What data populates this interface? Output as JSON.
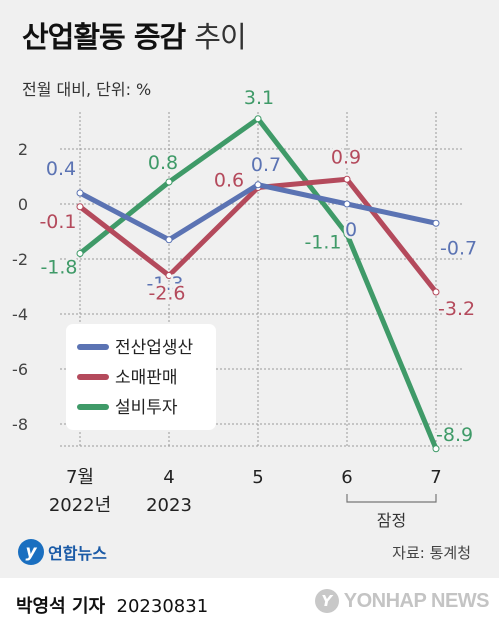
{
  "header": {
    "title_bold": "산업활동 증감",
    "title_light": "추이",
    "unit_note": "전월 대비, 단위: %"
  },
  "chart_data": {
    "type": "line",
    "categories": [
      {
        "line1": "7월",
        "line2": "2022년"
      },
      {
        "line1": "4",
        "line2": "2023"
      },
      {
        "line1": "5",
        "line2": ""
      },
      {
        "line1": "6",
        "line2": ""
      },
      {
        "line1": "7",
        "line2": ""
      }
    ],
    "yticks": [
      2,
      0,
      -2,
      -4,
      -6,
      -8
    ],
    "ytick_labels": [
      "2",
      "0",
      "-2",
      "-4",
      "-6",
      "-8"
    ],
    "ylim": [
      -9,
      3.5
    ],
    "series": [
      {
        "name": "전산업생산",
        "color": "#5b73b3",
        "values": [
          0.4,
          -1.3,
          0.7,
          0,
          -0.7
        ],
        "labels": [
          "0.4",
          "-1.3",
          "0.7",
          "0",
          "-0.7"
        ]
      },
      {
        "name": "소매판매",
        "color": "#b44a5c",
        "values": [
          -0.1,
          -2.6,
          0.6,
          0.9,
          -3.2
        ],
        "labels": [
          "-0.1",
          "-2.6",
          "0.6",
          "0.9",
          "-3.2"
        ]
      },
      {
        "name": "설비투자",
        "color": "#3f9a68",
        "values": [
          -1.8,
          0.8,
          3.1,
          -1.1,
          -8.9
        ],
        "labels": [
          "-1.8",
          "0.8",
          "3.1",
          "-1.1",
          "-8.9"
        ]
      }
    ],
    "bracket_note": "잠정",
    "legend_position": "bottom-left",
    "grid": true
  },
  "source": {
    "logo_mark": "y",
    "logo_name": "연합뉴스",
    "credit": "자료: 통계청"
  },
  "footer": {
    "reporter_name": "박영석 기자",
    "date": "20230831",
    "wordmark_glyph": "Y",
    "wordmark": "YONHAP NEWS"
  }
}
